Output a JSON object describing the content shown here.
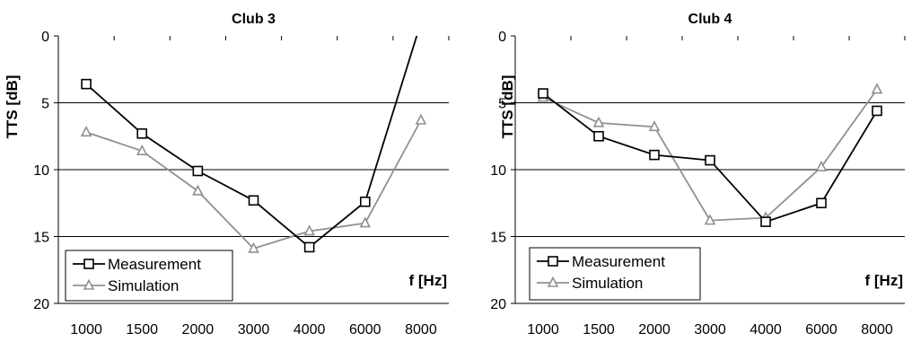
{
  "chart_data": [
    {
      "type": "line",
      "title": "Club 3",
      "ylabel": "TTS [dB]",
      "xlabel": "f [Hz]",
      "categories": [
        "1000",
        "1500",
        "2000",
        "3000",
        "4000",
        "6000",
        "8000"
      ],
      "ylim": [
        20,
        0
      ],
      "yticks": [
        0,
        5,
        10,
        15,
        20
      ],
      "y_inverted": true,
      "grid": "horizontal",
      "legend_position": "bottom-left",
      "series": [
        {
          "name": "Measurement",
          "color": "#000000",
          "marker": "square",
          "values": [
            3.6,
            7.3,
            10.1,
            12.3,
            15.8,
            12.4,
            -1.0
          ]
        },
        {
          "name": "Simulation",
          "color": "#909090",
          "marker": "triangle",
          "values": [
            7.2,
            8.6,
            11.6,
            15.9,
            14.6,
            14.0,
            6.3
          ]
        }
      ]
    },
    {
      "type": "line",
      "title": "Club 4",
      "ylabel": "TTS [dB]",
      "xlabel": "f [Hz]",
      "categories": [
        "1000",
        "1500",
        "2000",
        "3000",
        "4000",
        "6000",
        "8000"
      ],
      "ylim": [
        20,
        0
      ],
      "yticks": [
        0,
        5,
        10,
        15,
        20
      ],
      "y_inverted": true,
      "grid": "horizontal",
      "legend_position": "bottom-left",
      "series": [
        {
          "name": "Measurement",
          "color": "#000000",
          "marker": "square",
          "values": [
            4.3,
            7.5,
            8.9,
            9.3,
            13.9,
            12.5,
            5.6
          ]
        },
        {
          "name": "Simulation",
          "color": "#909090",
          "marker": "triangle",
          "values": [
            4.6,
            6.5,
            6.8,
            13.8,
            13.6,
            9.8,
            4.0
          ]
        }
      ]
    }
  ]
}
